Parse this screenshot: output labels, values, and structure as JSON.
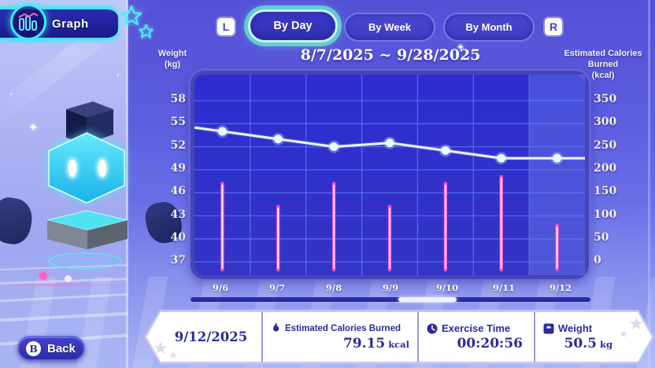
{
  "header": {
    "title": "Graph"
  },
  "shoulder_buttons": {
    "left": "L",
    "right": "R"
  },
  "tabs": [
    {
      "label": "By Day",
      "selected": true
    },
    {
      "label": "By Week",
      "selected": false
    },
    {
      "label": "By Month",
      "selected": false
    }
  ],
  "chart_data": {
    "type": "composite",
    "title": "8/7/2025 ~ 9/28/2025",
    "categories": [
      "9/6",
      "9/7",
      "9/8",
      "9/9",
      "9/10",
      "9/11",
      "9/12"
    ],
    "left_axis": {
      "label": "Weight",
      "unit": "(kg)",
      "ticks": [
        58,
        55,
        52,
        49,
        46,
        43,
        40,
        37
      ]
    },
    "right_axis": {
      "label": "Estimated Calories Burned",
      "unit": "(kcal)",
      "ticks": [
        350,
        300,
        250,
        200,
        150,
        100,
        50,
        0
      ]
    },
    "series": [
      {
        "name": "Weight (kg)",
        "type": "line",
        "axis": "left",
        "color": "#eef4ff",
        "edge_entry_value": 54.5,
        "values": [
          54,
          53,
          52,
          52.5,
          51.5,
          50.5,
          50.5
        ]
      },
      {
        "name": "Estimated Calories Burned (kcal)",
        "type": "bar",
        "axis": "right",
        "color": "#ff3ec9",
        "values": [
          170,
          120,
          170,
          120,
          170,
          185,
          79.15
        ]
      }
    ],
    "highlighted_category": "9/12",
    "grid": true,
    "legend": "none"
  },
  "scrollbar": {
    "thumb_left_pct": 52,
    "thumb_width_pct": 14.5
  },
  "detail_panel": {
    "date": "9/12/2025",
    "stats": [
      {
        "icon": "flame-icon",
        "label": "Estimated Calories Burned",
        "value": "79.15",
        "unit": "kcal"
      },
      {
        "icon": "clock-icon",
        "label": "Exercise Time",
        "value": "00:20:56",
        "unit": ""
      },
      {
        "icon": "scale-icon",
        "label": "Weight",
        "value": "50.5",
        "unit": "kg"
      }
    ]
  },
  "back_button": {
    "key": "B",
    "label": "Back"
  },
  "colors": {
    "accent_cyan": "#3fe9f6",
    "bar_pink": "#ff3ec9",
    "chart_bg": "#2e2ecd",
    "text_navy": "#2b2b9c"
  }
}
